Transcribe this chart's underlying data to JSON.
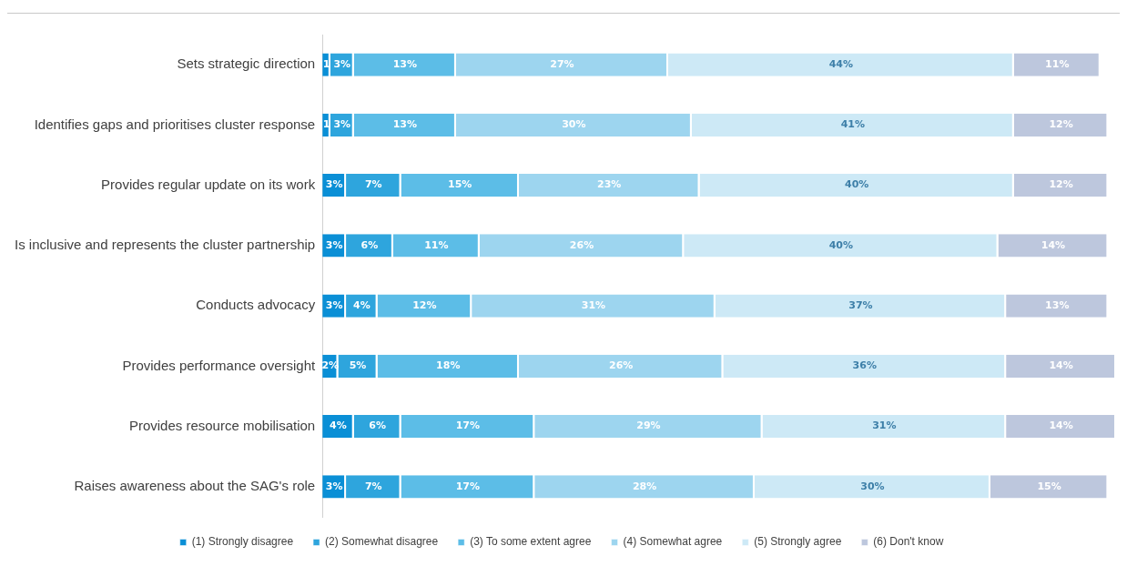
{
  "chart_data": {
    "type": "bar",
    "orientation": "horizontal",
    "stacked": true,
    "categories": [
      "Sets strategic direction",
      "Identifies gaps and prioritises cluster response",
      "Provides regular update on its work",
      "Is inclusive and represents the cluster partnership",
      "Conducts advocacy",
      "Provides performance oversight",
      "Provides resource mobilisation",
      "Raises awareness about the SAG's role"
    ],
    "series": [
      {
        "name": "(1) Strongly disagree",
        "color": "#0a8fd6",
        "values": [
          1,
          1,
          3,
          3,
          3,
          2,
          4,
          3
        ],
        "value_labels": [
          "1",
          "1",
          "3%",
          "3%",
          "3%",
          "2%",
          "4%",
          "3%"
        ]
      },
      {
        "name": "(2) Somewhat disagree",
        "color": "#2ea5dd",
        "values": [
          3,
          3,
          7,
          6,
          4,
          5,
          6,
          7
        ],
        "value_labels": [
          "3%",
          "3%",
          "7%",
          "6%",
          "4%",
          "5%",
          "6%",
          "7%"
        ]
      },
      {
        "name": "(3) To some extent agree",
        "color": "#5cbde7",
        "values": [
          13,
          13,
          15,
          11,
          12,
          18,
          17,
          17
        ],
        "value_labels": [
          "13%",
          "13%",
          "15%",
          "11%",
          "12%",
          "18%",
          "17%",
          "17%"
        ]
      },
      {
        "name": "(4) Somewhat agree",
        "color": "#9dd5ef",
        "values": [
          27,
          30,
          23,
          26,
          31,
          26,
          29,
          28
        ],
        "value_labels": [
          "27%",
          "30%",
          "23%",
          "26%",
          "31%",
          "26%",
          "29%",
          "28%"
        ]
      },
      {
        "name": "(5) Strongly agree",
        "color": "#cde9f6",
        "values": [
          44,
          41,
          40,
          40,
          37,
          36,
          31,
          30
        ],
        "value_labels": [
          "44%",
          "41%",
          "40%",
          "40%",
          "37%",
          "36%",
          "31%",
          "30%"
        ]
      },
      {
        "name": "(6) Don't know",
        "color": "#bdc7dd",
        "values": [
          11,
          12,
          12,
          14,
          13,
          14,
          14,
          15
        ],
        "value_labels": [
          "11%",
          "12%",
          "12%",
          "14%",
          "13%",
          "14%",
          "14%",
          "15%"
        ]
      }
    ],
    "xlim": [
      0,
      101
    ],
    "tick_labels": "y",
    "grid": false,
    "legend": "bottom"
  }
}
